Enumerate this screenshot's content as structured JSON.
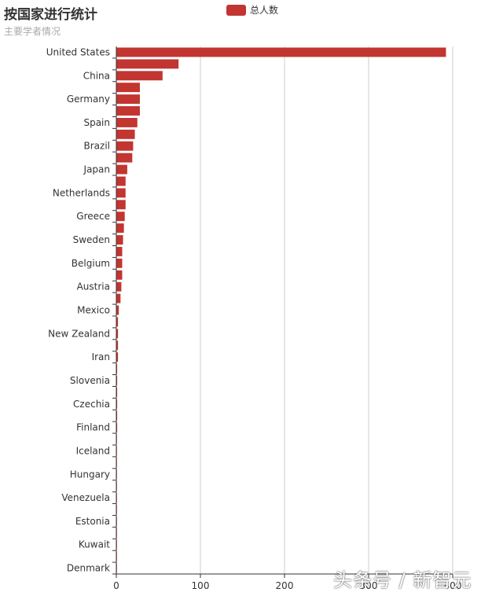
{
  "title": "按国家进行统计",
  "subtitle": "主要学者情况",
  "watermark": "头条号 / 新智元",
  "chart_data": {
    "type": "bar",
    "orientation": "horizontal",
    "title": "按国家进行统计",
    "subtitle": "主要学者情况",
    "legend": {
      "position": "top-center",
      "entries": [
        "总人数"
      ]
    },
    "categories": [
      "United States",
      "",
      "China",
      "",
      "Germany",
      "",
      "Spain",
      "",
      "Brazil",
      "",
      "Japan",
      "",
      "Netherlands",
      "",
      "Greece",
      "",
      "Sweden",
      "",
      "Belgium",
      "",
      "Austria",
      "",
      "Mexico",
      "",
      "New Zealand",
      "",
      "Iran",
      "",
      "Slovenia",
      "",
      "Czechia",
      "",
      "Finland",
      "",
      "Iceland",
      "",
      "Hungary",
      "",
      "Venezuela",
      "",
      "Estonia",
      "",
      "Kuwait",
      "",
      "Denmark"
    ],
    "series": [
      {
        "name": "总人数",
        "color": "#c23531",
        "values": [
          392,
          74,
          55,
          28,
          28,
          28,
          25,
          22,
          20,
          19,
          13,
          11,
          11,
          11,
          10,
          9,
          8,
          7,
          7,
          7,
          6,
          5,
          3,
          2,
          2,
          2,
          2,
          1,
          1,
          1,
          1,
          1,
          1,
          0.5,
          0.5,
          0.5,
          0.5,
          0.5,
          0.5,
          0.5,
          0.5,
          0.5,
          0.5,
          0.5,
          0.5
        ]
      }
    ],
    "xlim": [
      0,
      400
    ],
    "xticks": [
      0,
      100,
      200,
      300,
      400
    ],
    "grid": "vertical"
  }
}
